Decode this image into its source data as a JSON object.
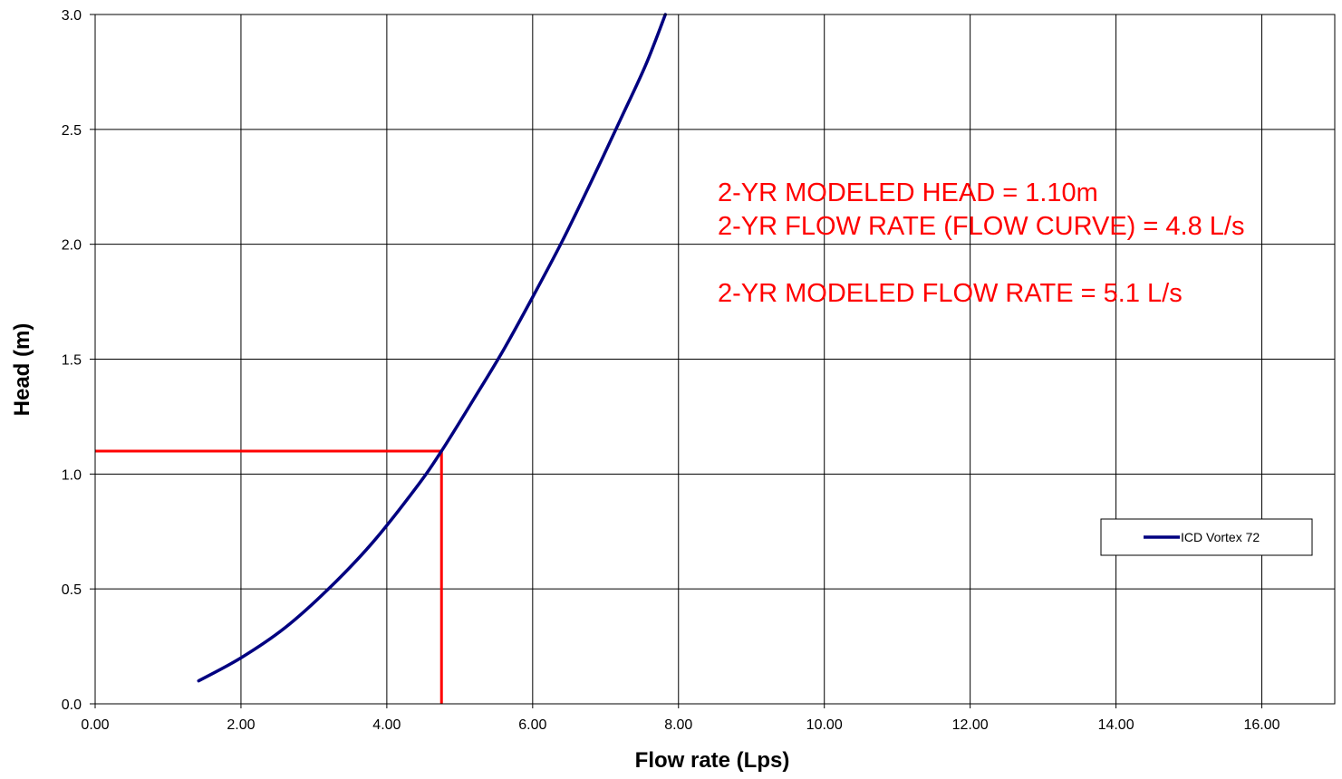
{
  "chart_data": {
    "type": "line",
    "xlabel": "Flow rate (Lps)",
    "ylabel": "Head (m)",
    "xlim": [
      0,
      17
    ],
    "ylim": [
      0,
      3.0
    ],
    "x_ticks": [
      0,
      2,
      4,
      6,
      8,
      10,
      12,
      14,
      16
    ],
    "x_tick_labels": [
      "0.00",
      "2.00",
      "4.00",
      "6.00",
      "8.00",
      "10.00",
      "12.00",
      "14.00",
      "16.00"
    ],
    "y_ticks": [
      0,
      0.5,
      1.0,
      1.5,
      2.0,
      2.5,
      3.0
    ],
    "y_tick_labels": [
      "0.0",
      "0.5",
      "1.0",
      "1.5",
      "2.0",
      "2.5",
      "3.0"
    ],
    "grid": true,
    "legend_position": "right",
    "series": [
      {
        "name": "ICD Vortex 72",
        "color": "#000080",
        "x": [
          1.42,
          2.0,
          2.6,
          3.2,
          3.8,
          4.4,
          4.75,
          5.2,
          5.6,
          6.0,
          6.4,
          6.8,
          7.2,
          7.55,
          7.82
        ],
        "y": [
          0.1,
          0.2,
          0.33,
          0.5,
          0.7,
          0.94,
          1.1,
          1.33,
          1.54,
          1.77,
          2.01,
          2.27,
          2.54,
          2.78,
          3.0
        ]
      }
    ],
    "reference_lines": {
      "color": "#ff0000",
      "head": 1.1,
      "flow": 4.75
    },
    "annotations": [
      "2-YR MODELED HEAD = 1.10m",
      "2-YR FLOW RATE (FLOW CURVE) = 4.8 L/s",
      "2-YR MODELED FLOW RATE = 5.1 L/s"
    ]
  }
}
